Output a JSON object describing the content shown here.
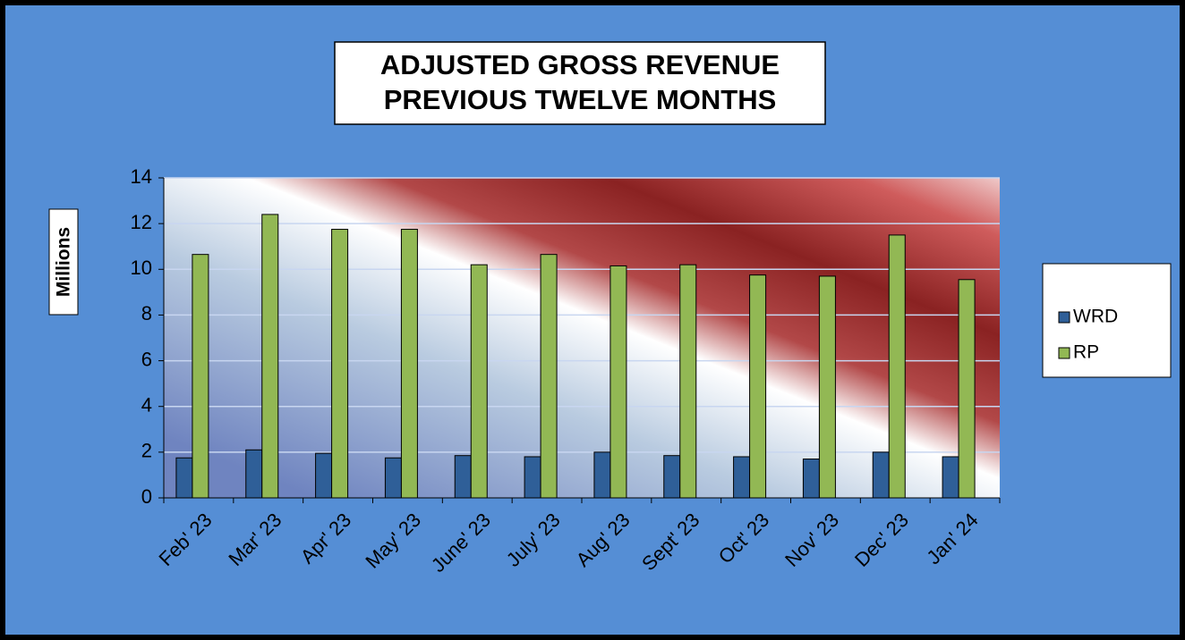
{
  "chart_data": {
    "type": "bar",
    "title": [
      "ADJUSTED GROSS REVENUE",
      "PREVIOUS TWELVE MONTHS"
    ],
    "y_label": "Millions",
    "categories": [
      "Feb' 23",
      "Mar' 23",
      "Apr' 23",
      "May' 23",
      "June' 23",
      "July' 23",
      "Aug' 23",
      "Sept' 23",
      "Oct' 23",
      "Nov' 23",
      "Dec' 23",
      "Jan' 24"
    ],
    "series": [
      {
        "name": "WRD",
        "color": "#2f5f98",
        "values": [
          1.75,
          2.1,
          1.95,
          1.75,
          1.85,
          1.8,
          2.0,
          1.85,
          1.8,
          1.7,
          2.0,
          1.8
        ]
      },
      {
        "name": "RP",
        "color": "#92b854",
        "values": [
          10.65,
          12.4,
          11.75,
          11.75,
          10.2,
          10.65,
          10.15,
          10.2,
          9.75,
          9.7,
          11.5,
          9.55
        ]
      }
    ],
    "ylim": [
      0,
      14
    ],
    "yticks": [
      0,
      2,
      4,
      6,
      8,
      10,
      12,
      14
    ],
    "grid": true,
    "legend": "right"
  }
}
